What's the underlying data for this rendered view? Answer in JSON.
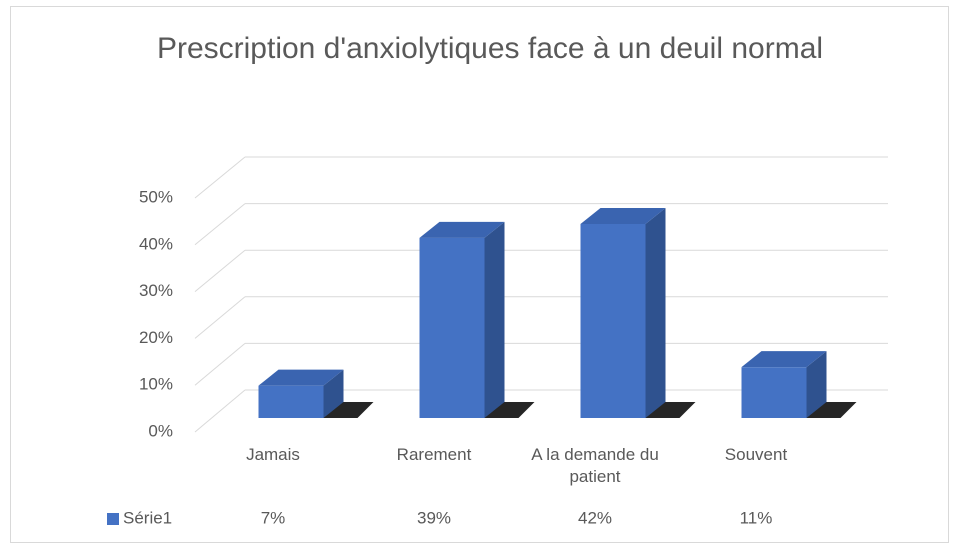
{
  "chart_data": {
    "type": "bar3d",
    "title": "Prescription d'anxiolytiques face à un deuil normal",
    "categories": [
      "Jamais",
      "Rarement",
      "A la demande du patient",
      "Souvent"
    ],
    "series": [
      {
        "name": "Série1",
        "color": "#4472c4",
        "values": [
          7,
          39,
          42,
          11
        ],
        "value_labels": [
          "7%",
          "39%",
          "42%",
          "11%"
        ]
      }
    ],
    "ylim": [
      0,
      50
    ],
    "yticks": [
      {
        "value": 0,
        "label": "0%"
      },
      {
        "value": 10,
        "label": "10%"
      },
      {
        "value": 20,
        "label": "20%"
      },
      {
        "value": 30,
        "label": "30%"
      },
      {
        "value": 40,
        "label": "40%"
      },
      {
        "value": 50,
        "label": "50%"
      }
    ],
    "grid": true
  }
}
